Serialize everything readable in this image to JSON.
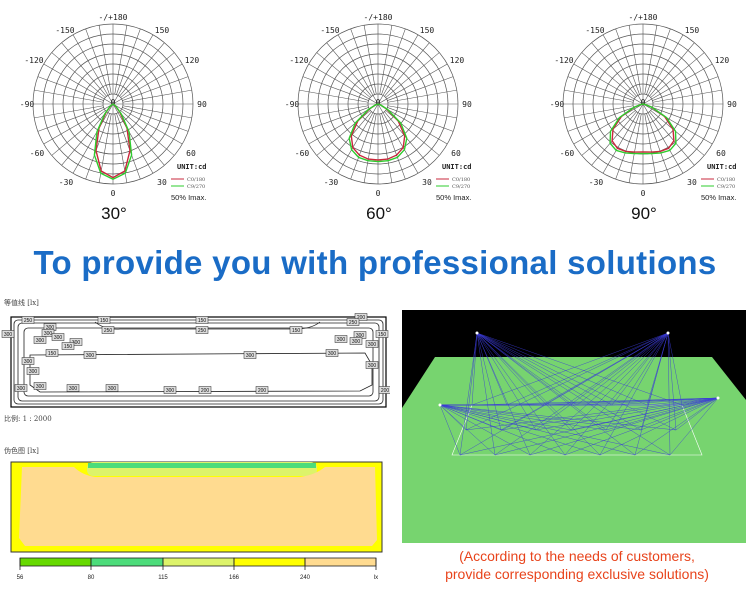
{
  "headline": "To provide you with professional solutions",
  "polar": {
    "angle_labels": {
      "top": "-/+180",
      "m150": "-150",
      "p150": "150",
      "m120": "-120",
      "p120": "120",
      "m90": "-90",
      "p90": "90",
      "m60": "-60",
      "p60": "60",
      "m30": "-30",
      "p30": "30",
      "bottom": "0",
      "center": "0"
    },
    "unit": "UNIT:cd",
    "legend": [
      "C0/180",
      "C9/270"
    ],
    "imax_note": "50% Imax."
  },
  "chart_data": [
    {
      "type": "polar",
      "beam_label": "30°",
      "angles_deg": [
        0,
        10,
        20,
        30,
        40,
        50,
        60,
        70,
        80,
        90
      ],
      "series": [
        {
          "name": "C0/180",
          "color": "#c8283c",
          "values": [
            0.92,
            0.85,
            0.62,
            0.35,
            0.13,
            0.04,
            0.01,
            0,
            0,
            0
          ]
        },
        {
          "name": "C9/270",
          "color": "#2ecc2e",
          "values": [
            0.94,
            0.88,
            0.68,
            0.4,
            0.16,
            0.05,
            0.01,
            0,
            0,
            0
          ]
        }
      ]
    },
    {
      "type": "polar",
      "beam_label": "60°",
      "angles_deg": [
        0,
        10,
        20,
        30,
        40,
        50,
        60,
        70,
        80,
        90
      ],
      "series": [
        {
          "name": "C0/180",
          "color": "#c8283c",
          "values": [
            0.7,
            0.7,
            0.68,
            0.63,
            0.52,
            0.33,
            0.12,
            0.03,
            0,
            0
          ]
        },
        {
          "name": "C9/270",
          "color": "#2ecc2e",
          "values": [
            0.72,
            0.72,
            0.71,
            0.66,
            0.56,
            0.37,
            0.14,
            0.03,
            0,
            0
          ]
        }
      ]
    },
    {
      "type": "polar",
      "beam_label": "90°",
      "angles_deg": [
        0,
        10,
        20,
        30,
        40,
        50,
        60,
        70,
        80,
        90
      ],
      "series": [
        {
          "name": "C0/180",
          "color": "#c8283c",
          "values": [
            0.6,
            0.61,
            0.63,
            0.64,
            0.6,
            0.49,
            0.31,
            0.11,
            0.02,
            0
          ]
        },
        {
          "name": "C9/270",
          "color": "#2ecc2e",
          "values": [
            0.62,
            0.63,
            0.65,
            0.67,
            0.64,
            0.53,
            0.34,
            0.12,
            0.02,
            0
          ]
        }
      ]
    }
  ],
  "contour": {
    "title": "等值线 [lx]",
    "scale": "比例: 1 : 2000",
    "labels": [
      "250",
      "150",
      "150",
      "200",
      "250",
      "250",
      "250",
      "150",
      "300",
      "300",
      "300",
      "300",
      "300",
      "150",
      "150",
      "300",
      "300",
      "300",
      "300",
      "150",
      "300",
      "300",
      "300",
      "300",
      "300",
      "300",
      "300",
      "300",
      "300",
      "300",
      "300",
      "300",
      "200",
      "200",
      "200"
    ]
  },
  "falsecolor": {
    "title": "伪色图 [lx]",
    "legend_ticks": [
      "56",
      "80",
      "115",
      "166",
      "240",
      "lx"
    ],
    "legend_colors": [
      "#66d900",
      "#4cdc7a",
      "#ddf36a",
      "#ffff00",
      "#ffdb90"
    ]
  },
  "scene": {
    "background": "#000000",
    "floor": "#77d46f",
    "rays": "#3b3bd6"
  },
  "caption": {
    "line1": "(According to the needs of customers,",
    "line2": "provide corresponding exclusive solutions)"
  }
}
